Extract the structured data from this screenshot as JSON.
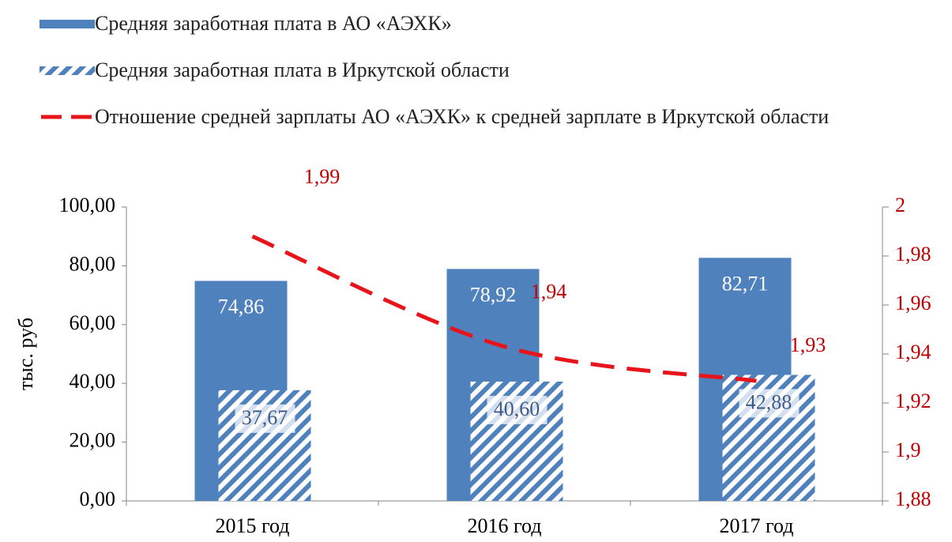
{
  "chart_data": {
    "type": "bar",
    "categories": [
      "2015 год",
      "2016 год",
      "2017 год"
    ],
    "y_label": "тыс. руб",
    "series": [
      {
        "name": "Средняя заработная плата в АО «АЭХК»",
        "color": "#4f81bd",
        "values": [
          74.86,
          78.92,
          82.71
        ],
        "value_labels": [
          "74,86",
          "78,92",
          "82,71"
        ]
      },
      {
        "name": "Средняя заработная плата в Иркутской области",
        "color": "#4f81bd",
        "pattern": "hatch",
        "values": [
          37.67,
          40.6,
          42.88
        ],
        "value_labels": [
          "37,67",
          "40,60",
          "42,88"
        ]
      },
      {
        "name": "Отношение средней зарплаты АО «АЭХК» к средней зарплате в Иркутской области",
        "type": "line",
        "color": "#e8141b",
        "axis": "y2",
        "values": [
          1.988,
          1.943,
          1.929
        ],
        "value_labels": [
          "1,99",
          "1,94",
          "1,93"
        ]
      }
    ],
    "ylim": [
      0,
      100
    ],
    "yticks": [
      {
        "value": 0,
        "label": "0,00"
      },
      {
        "value": 20,
        "label": "20,00"
      },
      {
        "value": 40,
        "label": "40,00"
      },
      {
        "value": 60,
        "label": "60,00"
      },
      {
        "value": 80,
        "label": "80,00"
      },
      {
        "value": 100,
        "label": "100,00"
      }
    ],
    "y2lim": [
      1.88,
      2
    ],
    "y2ticks": [
      {
        "value": 1.88,
        "label": "1,88"
      },
      {
        "value": 1.9,
        "label": "1,9"
      },
      {
        "value": 1.92,
        "label": "1,92"
      },
      {
        "value": 1.94,
        "label": "1,94"
      },
      {
        "value": 1.96,
        "label": "1,96"
      },
      {
        "value": 1.98,
        "label": "1,98"
      },
      2
    ]
  }
}
